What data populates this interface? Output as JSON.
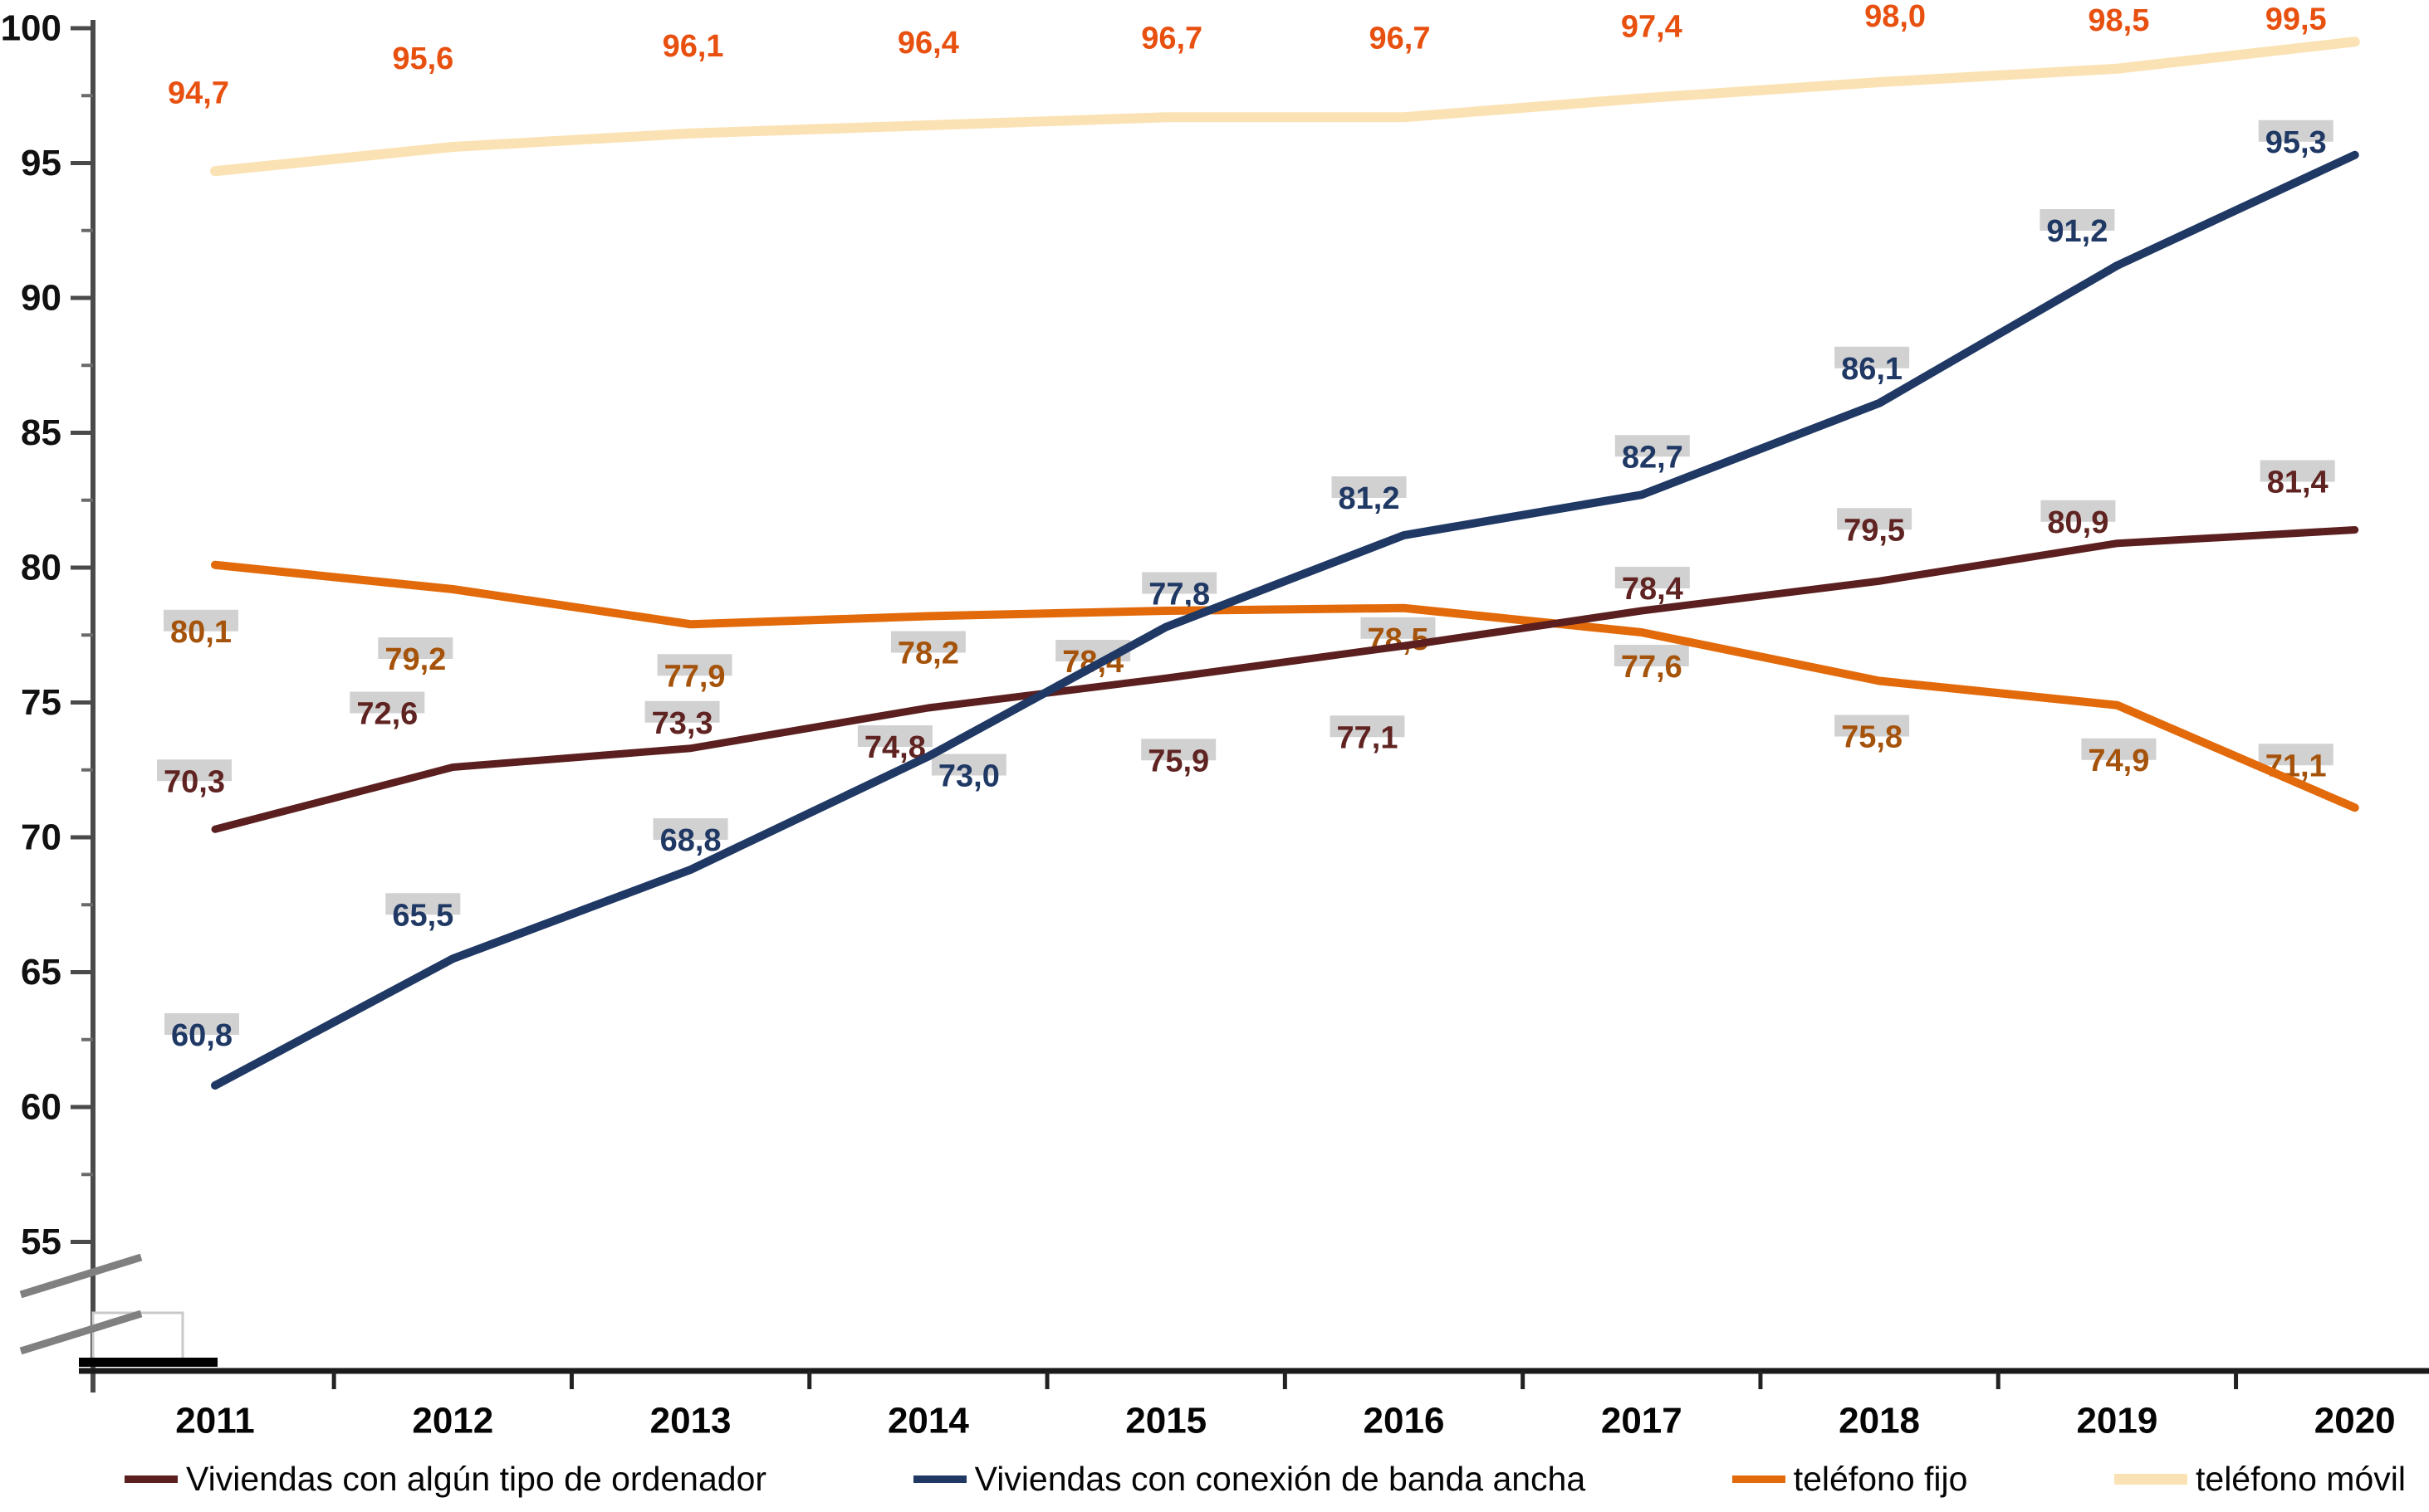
{
  "chart_data": {
    "type": "line",
    "title": "",
    "categories": [
      "2011",
      "2012",
      "2013",
      "2014",
      "2015",
      "2016",
      "2017",
      "2018",
      "2019",
      "2020"
    ],
    "y_ticks": [
      100,
      95,
      90,
      85,
      80,
      75,
      70,
      65,
      60,
      55
    ],
    "ylim": [
      55,
      100
    ],
    "y_axis_break_at_bottom": true,
    "grid": false,
    "legend_position": "bottom",
    "decimal_separator": ",",
    "label_backing_color": "#cccccc",
    "series": [
      {
        "name": "Viviendas con algún tipo de ordenador",
        "color": "#5A1F1E",
        "label_color": "#5F2321",
        "values": [
          70.3,
          72.6,
          73.3,
          74.8,
          75.9,
          77.1,
          78.4,
          79.5,
          80.9,
          81.4
        ]
      },
      {
        "name": "Viviendas con conexión de banda ancha",
        "color": "#1F3864",
        "label_color": "#1F3864",
        "values": [
          60.8,
          65.5,
          68.8,
          73.0,
          77.8,
          81.2,
          82.7,
          86.1,
          91.2,
          95.3
        ]
      },
      {
        "name": "teléfono fijo",
        "color": "#E26A0A",
        "label_color": "#A5530B",
        "values": [
          80.1,
          79.2,
          77.9,
          78.2,
          78.4,
          78.5,
          77.6,
          75.8,
          74.9,
          71.1
        ]
      },
      {
        "name": "teléfono móvil",
        "color": "#FBE2B4",
        "label_color": "#E8500F",
        "values": [
          94.7,
          95.6,
          96.1,
          96.4,
          96.7,
          96.7,
          97.4,
          98.0,
          98.5,
          99.5
        ]
      }
    ]
  }
}
